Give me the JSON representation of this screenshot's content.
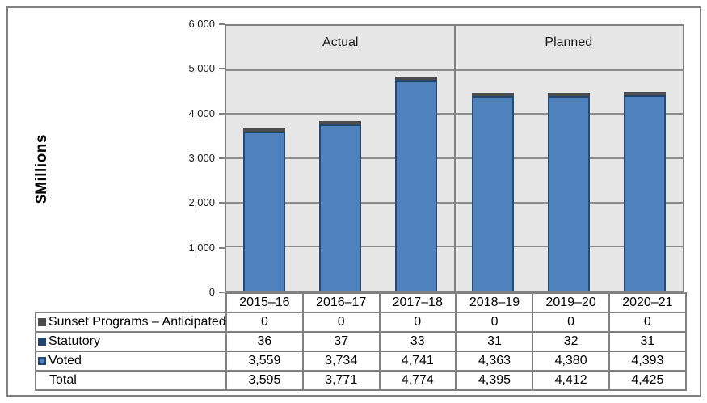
{
  "chart_data": {
    "type": "bar",
    "stacked": true,
    "ylabel": "$Millions",
    "ylim": [
      0,
      6000
    ],
    "ytick_interval": 1000,
    "ytick_labels": [
      "0",
      "1,000",
      "2,000",
      "3,000",
      "4,000",
      "5,000",
      "6,000"
    ],
    "grid": true,
    "plot_bg": "#e6e6e6",
    "grid_color": "#8c8c8c",
    "axis_color": "#808080",
    "sections": [
      {
        "label": "Actual",
        "categories_span": 3
      },
      {
        "label": "Planned",
        "categories_span": 3
      }
    ],
    "categories": [
      "2015–16",
      "2016–17",
      "2017–18",
      "2018–19",
      "2019–20",
      "2020–21"
    ],
    "series": [
      {
        "name": "Sunset Programs – Anticipated",
        "values": [
          0,
          0,
          0,
          0,
          0,
          0
        ],
        "color": "#4d4d4d"
      },
      {
        "name": "Statutory",
        "values": [
          36,
          37,
          33,
          31,
          32,
          31
        ],
        "color": "#24466b"
      },
      {
        "name": "Voted",
        "values": [
          3559,
          3734,
          4741,
          4363,
          4380,
          4393
        ],
        "color": "#4f81bd",
        "border_color": "#264a73"
      }
    ],
    "totals": [
      3595,
      3771,
      4774,
      4395,
      4412,
      4425
    ]
  },
  "table": {
    "year_headers": [
      "2015–16",
      "2016–17",
      "2017–18",
      "2018–19",
      "2019–20",
      "2020–21"
    ],
    "rows": [
      {
        "label": "Sunset Programs – Anticipated",
        "marker_color": "#4d4d4d",
        "values": [
          "0",
          "0",
          "0",
          "0",
          "0",
          "0"
        ]
      },
      {
        "label": "Statutory",
        "marker_color": "#24466b",
        "values": [
          "36",
          "37",
          "33",
          "31",
          "32",
          "31"
        ]
      },
      {
        "label": "Voted",
        "marker_color": "#4f81bd",
        "marker_border": "#264a73",
        "values": [
          "3,559",
          "3,734",
          "4,741",
          "4,363",
          "4,380",
          "4,393"
        ]
      },
      {
        "label": "Total",
        "values": [
          "3,595",
          "3,771",
          "4,774",
          "4,395",
          "4,412",
          "4,425"
        ]
      }
    ]
  }
}
